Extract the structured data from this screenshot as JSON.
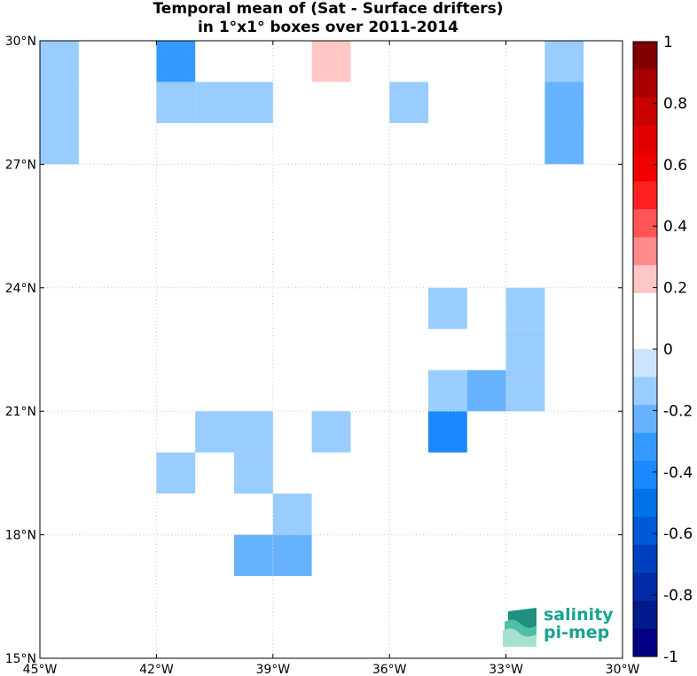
{
  "chart_data": {
    "type": "heatmap",
    "title": "Temporal mean of (Sat - Surface drifters)",
    "subtitle": "in 1°x1° boxes over 2011-2014",
    "x_ticks": [
      "45°W",
      "42°W",
      "39°W",
      "36°W",
      "33°W",
      "30°W"
    ],
    "y_ticks": [
      "30°N",
      "27°N",
      "24°N",
      "21°N",
      "18°N",
      "15°N"
    ],
    "lon_range": [
      -45,
      -30
    ],
    "lat_range": [
      15,
      30
    ],
    "grid": true,
    "colorbar": {
      "range": [
        -1,
        1
      ],
      "tick_labels": [
        "1",
        "0.8",
        "0.6",
        "0.4",
        "0.2",
        "0",
        "-0.2",
        "-0.4",
        "-0.6",
        "-0.8",
        "-1"
      ],
      "colors_top_to_bottom": [
        "#800000",
        "#a80000",
        "#c80000",
        "#e00000",
        "#f20000",
        "#ff2020",
        "#ff5555",
        "#ff8c8c",
        "#ffc6c6",
        "#ffffff",
        "#ffffff",
        "#cce4ff",
        "#99ccff",
        "#66b2ff",
        "#3399ff",
        "#1a88ff",
        "#0073e6",
        "#0059d9",
        "#0040bf",
        "#002aa6",
        "#001a8c",
        "#000080"
      ]
    },
    "cells": [
      {
        "lon": -45,
        "lat": 29,
        "value": -0.1
      },
      {
        "lon": -45,
        "lat": 28,
        "value": -0.1
      },
      {
        "lon": -45,
        "lat": 27,
        "value": -0.1
      },
      {
        "lon": -42,
        "lat": 29,
        "value": -0.35
      },
      {
        "lon": -42,
        "lat": 28,
        "value": -0.1
      },
      {
        "lon": -41,
        "lat": 28,
        "value": -0.1
      },
      {
        "lon": -40,
        "lat": 28,
        "value": -0.1
      },
      {
        "lon": -39,
        "lat": 29,
        "value": 0.15
      },
      {
        "lon": -38,
        "lat": 29,
        "value": 0.25
      },
      {
        "lon": -36,
        "lat": 28,
        "value": -0.1
      },
      {
        "lon": -32,
        "lat": 29,
        "value": -0.1
      },
      {
        "lon": -32,
        "lat": 28,
        "value": -0.25
      },
      {
        "lon": -32,
        "lat": 27,
        "value": -0.25
      },
      {
        "lon": -35,
        "lat": 23,
        "value": -0.1
      },
      {
        "lon": -33,
        "lat": 23,
        "value": -0.1
      },
      {
        "lon": -33,
        "lat": 22,
        "value": -0.1
      },
      {
        "lon": -33,
        "lat": 21,
        "value": -0.1
      },
      {
        "lon": -35,
        "lat": 21,
        "value": -0.1
      },
      {
        "lon": -34,
        "lat": 21,
        "value": -0.25
      },
      {
        "lon": -35,
        "lat": 20,
        "value": -0.45
      },
      {
        "lon": -41,
        "lat": 20,
        "value": -0.1
      },
      {
        "lon": -40,
        "lat": 20,
        "value": -0.1
      },
      {
        "lon": -38,
        "lat": 20,
        "value": -0.1
      },
      {
        "lon": -45,
        "lat": 19,
        "value": 0.15
      },
      {
        "lon": -42,
        "lat": 19,
        "value": -0.1
      },
      {
        "lon": -40,
        "lat": 19,
        "value": -0.1
      },
      {
        "lon": -42,
        "lat": 18,
        "value": 0.15
      },
      {
        "lon": -39,
        "lat": 18,
        "value": -0.1
      },
      {
        "lon": -37,
        "lat": 18,
        "value": 0.15
      },
      {
        "lon": -40,
        "lat": 17,
        "value": -0.25
      },
      {
        "lon": -39,
        "lat": 17,
        "value": -0.25
      }
    ]
  },
  "logo": {
    "word1": "salinity",
    "word2": "pi-mep"
  }
}
